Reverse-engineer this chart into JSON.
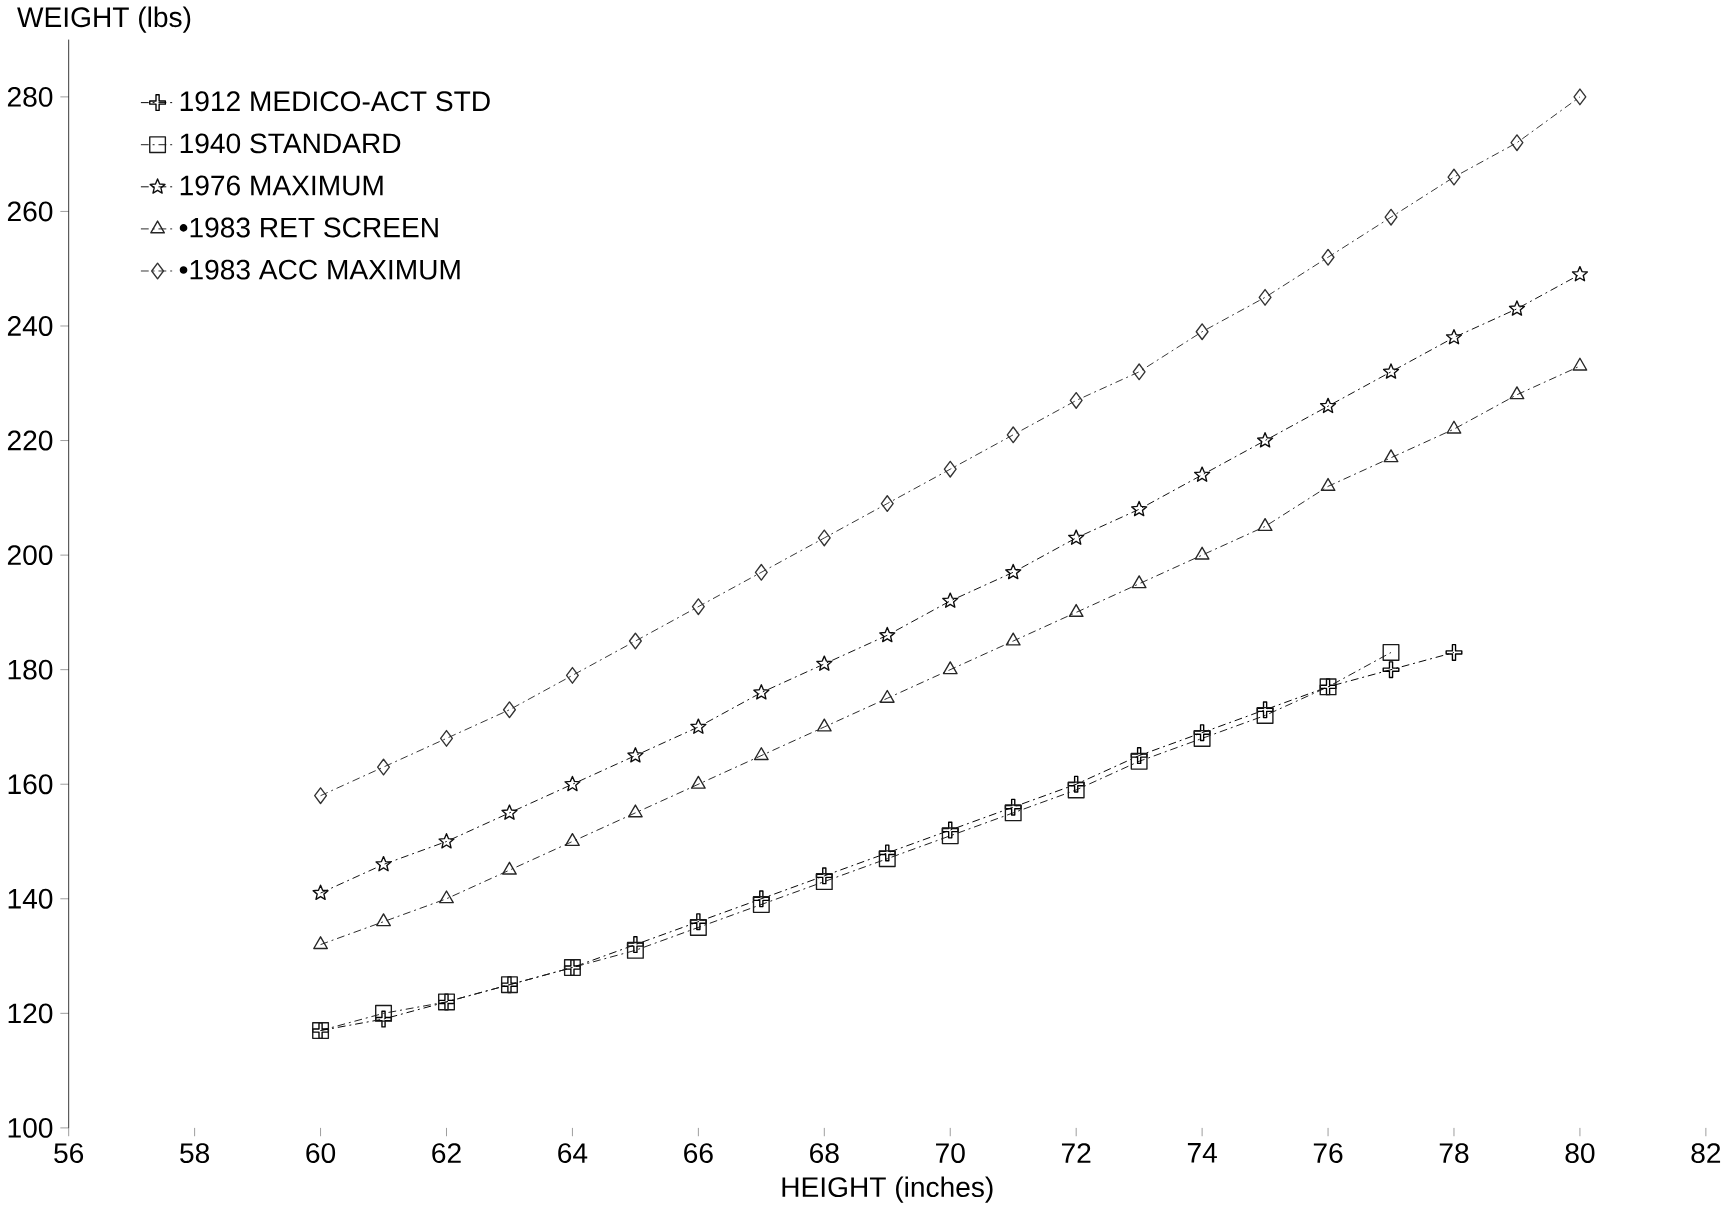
{
  "chart_data": {
    "type": "line",
    "xlabel": "HEIGHT (inches)",
    "ylabel": "WEIGHT (lbs)",
    "xlim": [
      56,
      82
    ],
    "xticks": [
      56,
      58,
      60,
      62,
      64,
      66,
      68,
      70,
      72,
      74,
      76,
      78,
      80,
      82
    ],
    "ylim": [
      100,
      290
    ],
    "yticks": [
      100,
      120,
      140,
      160,
      180,
      200,
      220,
      240,
      260,
      280
    ],
    "grid": false,
    "legend": "top left",
    "line_style": "dashed",
    "series": [
      {
        "name": "1912 MEDICO-ACT STD",
        "color": "#000000",
        "marker": "cross",
        "x": [
          60,
          61,
          62,
          63,
          64,
          65,
          66,
          67,
          68,
          69,
          70,
          71,
          72,
          73,
          74,
          75,
          76,
          77,
          78
        ],
        "values": [
          117,
          119,
          122,
          125,
          128,
          132,
          136,
          140,
          144,
          148,
          152,
          156,
          160,
          165,
          169,
          173,
          177,
          180,
          183
        ]
      },
      {
        "name": "1940 STANDARD",
        "color": "#1a1a1a",
        "marker": "square",
        "x": [
          60,
          61,
          62,
          63,
          64,
          65,
          66,
          67,
          68,
          69,
          70,
          71,
          72,
          73,
          74,
          75,
          76,
          77
        ],
        "values": [
          117,
          120,
          122,
          125,
          128,
          131,
          135,
          139,
          143,
          147,
          151,
          155,
          159,
          164,
          168,
          172,
          177,
          183
        ]
      },
      {
        "name": "1976 MAXIMUM",
        "color": "#0d0d0d",
        "marker": "star",
        "x": [
          60,
          61,
          62,
          63,
          64,
          65,
          66,
          67,
          68,
          69,
          70,
          71,
          72,
          73,
          74,
          75,
          76,
          77,
          78,
          79,
          80
        ],
        "values": [
          141,
          146,
          150,
          155,
          160,
          165,
          170,
          176,
          181,
          186,
          192,
          197,
          203,
          208,
          214,
          220,
          226,
          232,
          238,
          243,
          249
        ]
      },
      {
        "name": "•1983 RET SCREEN",
        "color": "#262626",
        "marker": "triangle",
        "x": [
          60,
          61,
          62,
          63,
          64,
          65,
          66,
          67,
          68,
          69,
          70,
          71,
          72,
          73,
          74,
          75,
          76,
          77,
          78,
          79,
          80
        ],
        "values": [
          132,
          136,
          140,
          145,
          150,
          155,
          160,
          165,
          170,
          175,
          180,
          185,
          190,
          195,
          200,
          205,
          212,
          217,
          222,
          228,
          233
        ]
      },
      {
        "name": "•1983 ACC MAXIMUM",
        "color": "#333333",
        "marker": "diamond",
        "x": [
          60,
          61,
          62,
          63,
          64,
          65,
          66,
          67,
          68,
          69,
          70,
          71,
          72,
          73,
          74,
          75,
          76,
          77,
          78,
          79,
          80
        ],
        "values": [
          158,
          163,
          168,
          173,
          179,
          185,
          191,
          197,
          203,
          209,
          215,
          221,
          227,
          232,
          239,
          245,
          252,
          259,
          266,
          272,
          280
        ]
      }
    ]
  }
}
